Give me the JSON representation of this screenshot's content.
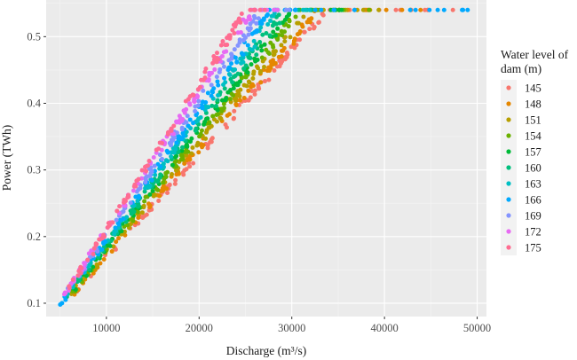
{
  "chart_data": {
    "type": "scatter",
    "title": "",
    "xlabel": "Discharge (m³/s)",
    "ylabel": "Power (TWh)",
    "xlim": [
      3500,
      51000
    ],
    "ylim": [
      0.08,
      0.555
    ],
    "xticks": [
      10000,
      20000,
      30000,
      40000,
      50000
    ],
    "yticks": [
      0.1,
      0.2,
      0.3,
      0.4,
      0.5
    ],
    "xtick_labels": [
      "10000",
      "20000",
      "30000",
      "40000",
      "50000"
    ],
    "ytick_labels": [
      "0.1",
      "0.2",
      "0.3",
      "0.4",
      "0.5"
    ],
    "grid": true,
    "legend_position": "right",
    "legend_title_lines": [
      "Water level of",
      "dam (m)"
    ],
    "cap_power": 0.54,
    "series": [
      {
        "name": "145",
        "color": "#F8766D",
        "x_start": 6500,
        "y_start": 0.115,
        "x_cap": 33500,
        "x_end": 47500
      },
      {
        "name": "148",
        "color": "#E58700",
        "x_start": 6300,
        "y_start": 0.113,
        "x_cap": 32500,
        "x_end": 44000
      },
      {
        "name": "151",
        "color": "#B79F00",
        "x_start": 6100,
        "y_start": 0.112,
        "x_cap": 31500,
        "x_end": 42000
      },
      {
        "name": "154",
        "color": "#6BB100",
        "x_start": 5900,
        "y_start": 0.11,
        "x_cap": 30500,
        "x_end": 39000
      },
      {
        "name": "157",
        "color": "#00BA38",
        "x_start": 5700,
        "y_start": 0.108,
        "x_cap": 29800,
        "x_end": 36000
      },
      {
        "name": "160",
        "color": "#00BF7D",
        "x_start": 5500,
        "y_start": 0.106,
        "x_cap": 29000,
        "x_end": 34000
      },
      {
        "name": "163",
        "color": "#00BFC4",
        "x_start": 5300,
        "y_start": 0.103,
        "x_cap": 28200,
        "x_end": 32000
      },
      {
        "name": "166",
        "color": "#00A9FF",
        "x_start": 5000,
        "y_start": 0.098,
        "x_cap": 27400,
        "x_end": 49200
      },
      {
        "name": "169",
        "color": "#8494FF",
        "x_start": 5200,
        "y_start": 0.105,
        "x_cap": 26500,
        "x_end": 30000
      },
      {
        "name": "172",
        "color": "#E76BF3",
        "x_start": 5300,
        "y_start": 0.11,
        "x_cap": 25500,
        "x_end": 29000
      },
      {
        "name": "175",
        "color": "#FF6C91",
        "x_start": 5500,
        "y_start": 0.112,
        "x_cap": 24800,
        "x_end": 27500
      }
    ]
  }
}
